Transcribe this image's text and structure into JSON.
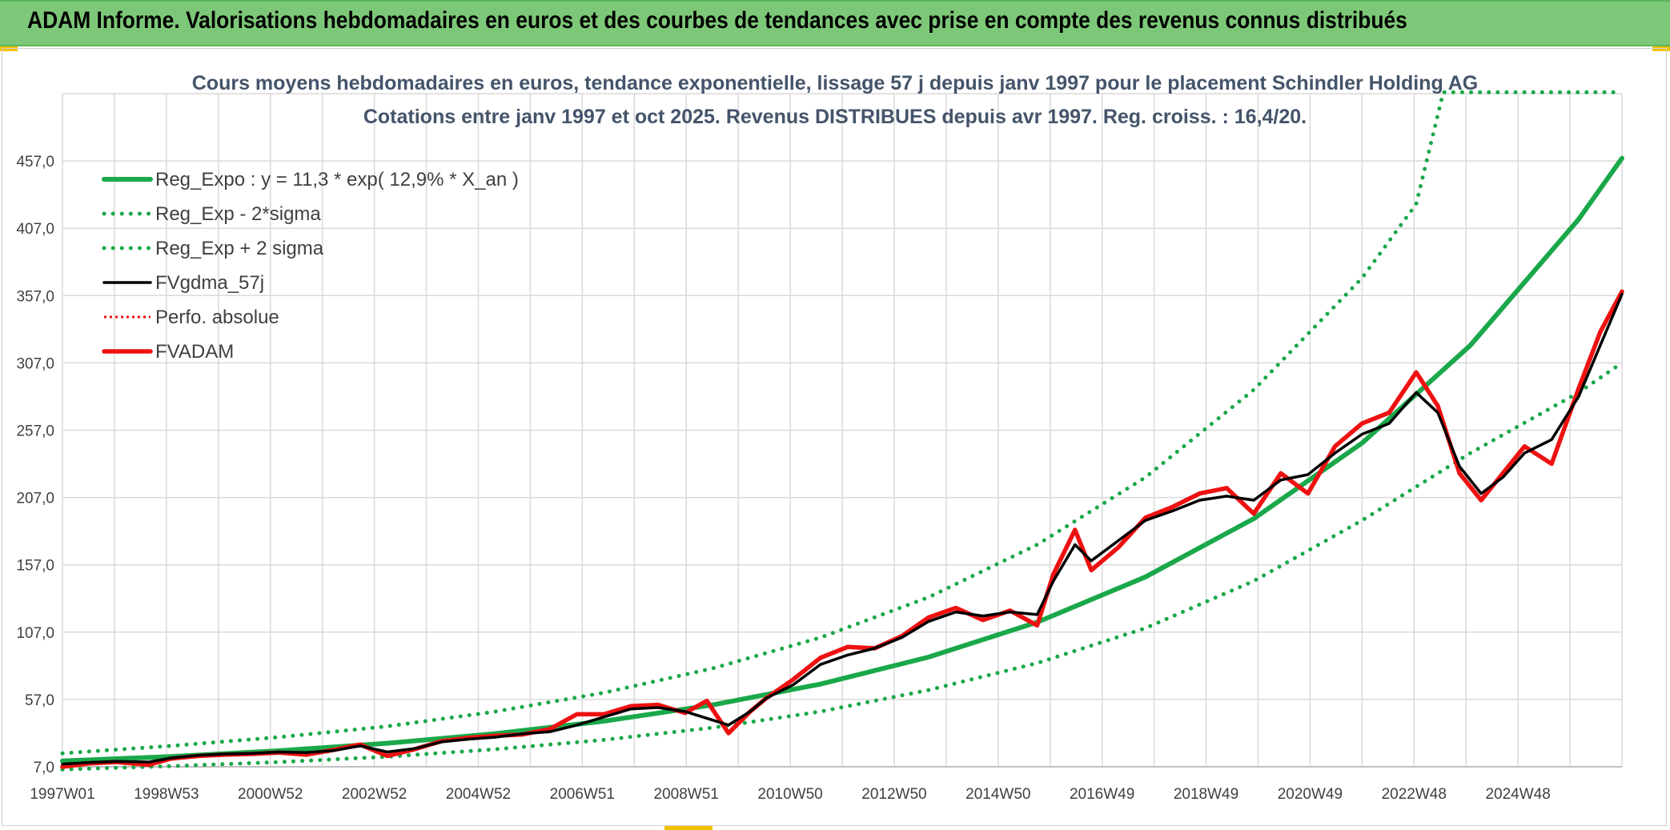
{
  "header": {
    "title": "ADAM Informe. Valorisations hebdomadaires en euros et des courbes de tendances avec prise en compte des revenus connus distribués"
  },
  "colors": {
    "banner": "#7dc878",
    "trend": "#1aa84a",
    "gdma": "#000000",
    "adam": "#ee1111",
    "title": "#44546a"
  },
  "chart_data": {
    "type": "line",
    "title": "Cours moyens hebdomadaires en euros, tendance exponentielle, lissage 57 j depuis janv 1997 pour le placement Schindler Holding AG",
    "subtitle": "Cotations entre janv 1997 et oct 2025. Revenus DISTRIBUES depuis avr 1997. Reg. croiss. : 16,4/20.",
    "x_ticks": [
      "1997W01",
      "1998W53",
      "2000W52",
      "2002W52",
      "2004W52",
      "2006W51",
      "2008W51",
      "2010W50",
      "2012W50",
      "2014W50",
      "2016W49",
      "2018W49",
      "2020W49",
      "2022W48",
      "2024W48"
    ],
    "y_ticks": [
      "7,0",
      "57,0",
      "107,0",
      "157,0",
      "207,0",
      "257,0",
      "307,0",
      "357,0",
      "407,0",
      "457,0"
    ],
    "ylim": [
      7,
      507
    ],
    "xlim": [
      1997.0,
      2025.8
    ],
    "grid": true,
    "legend_position": "top-left",
    "series": [
      {
        "name": "Reg_Expo : y = 11,3 * exp( 12,9% *  X_an )",
        "style": "solid-green",
        "values": [
          [
            1997.0,
            11.3
          ],
          [
            1999.0,
            14.6
          ],
          [
            2001.0,
            18.9
          ],
          [
            2003.0,
            24.5
          ],
          [
            2005.0,
            31.6
          ],
          [
            2007.0,
            40.9
          ],
          [
            2009.0,
            52.9
          ],
          [
            2011.0,
            68.4
          ],
          [
            2013.0,
            88.5
          ],
          [
            2015.0,
            114.4
          ],
          [
            2017.0,
            148.0
          ],
          [
            2019.0,
            191.3
          ],
          [
            2021.0,
            247.4
          ],
          [
            2023.0,
            320.0
          ],
          [
            2025.0,
            413.7
          ],
          [
            2025.8,
            459.0
          ]
        ]
      },
      {
        "name": "Reg_Exp - 2*sigma",
        "style": "dotted-green",
        "values": [
          [
            1997.0,
            5.0
          ],
          [
            1999.0,
            7.5
          ],
          [
            2001.0,
            10.5
          ],
          [
            2003.0,
            14.5
          ],
          [
            2005.0,
            20.0
          ],
          [
            2007.0,
            27.0
          ],
          [
            2009.0,
            36.0
          ],
          [
            2011.0,
            48.0
          ],
          [
            2013.0,
            64.0
          ],
          [
            2015.0,
            84.0
          ],
          [
            2017.0,
            110.0
          ],
          [
            2019.0,
            145.0
          ],
          [
            2021.0,
            190.0
          ],
          [
            2023.0,
            240.0
          ],
          [
            2025.0,
            285.0
          ],
          [
            2025.8,
            307.0
          ]
        ]
      },
      {
        "name": "Reg_Exp + 2 sigma",
        "style": "dotted-green",
        "values": [
          [
            1997.0,
            17.0
          ],
          [
            1999.0,
            22.5
          ],
          [
            2001.0,
            29.0
          ],
          [
            2003.0,
            37.0
          ],
          [
            2005.0,
            48.0
          ],
          [
            2007.0,
            62.0
          ],
          [
            2009.0,
            80.0
          ],
          [
            2011.0,
            103.0
          ],
          [
            2013.0,
            133.0
          ],
          [
            2015.0,
            172.0
          ],
          [
            2017.0,
            222.0
          ],
          [
            2019.0,
            287.0
          ],
          [
            2021.0,
            370.0
          ],
          [
            2022.0,
            425.0
          ],
          [
            2022.5,
            508.0
          ],
          [
            2025.8,
            508.0
          ]
        ]
      },
      {
        "name": "FVgdma_57j",
        "style": "solid-black",
        "values": [
          [
            1997.0,
            9.0
          ],
          [
            1997.5,
            10.2
          ],
          [
            1998.0,
            11.0
          ],
          [
            1998.6,
            10.5
          ],
          [
            1999.0,
            13.5
          ],
          [
            1999.5,
            15.5
          ],
          [
            2000.0,
            16.5
          ],
          [
            2000.5,
            17.0
          ],
          [
            2001.0,
            18.0
          ],
          [
            2001.5,
            17.5
          ],
          [
            2002.0,
            19.0
          ],
          [
            2002.5,
            22.5
          ],
          [
            2003.0,
            18.0
          ],
          [
            2003.5,
            20.5
          ],
          [
            2004.0,
            25.5
          ],
          [
            2004.5,
            27.5
          ],
          [
            2005.0,
            29.0
          ],
          [
            2005.5,
            31.5
          ],
          [
            2006.0,
            33.0
          ],
          [
            2006.5,
            38.0
          ],
          [
            2007.0,
            44.0
          ],
          [
            2007.5,
            50.0
          ],
          [
            2008.0,
            51.0
          ],
          [
            2008.5,
            48.0
          ],
          [
            2008.9,
            43.0
          ],
          [
            2009.3,
            38.0
          ],
          [
            2009.7,
            48.0
          ],
          [
            2010.0,
            58.0
          ],
          [
            2010.5,
            68.0
          ],
          [
            2011.0,
            83.0
          ],
          [
            2011.5,
            90.0
          ],
          [
            2012.0,
            95.0
          ],
          [
            2012.5,
            103.0
          ],
          [
            2013.0,
            115.0
          ],
          [
            2013.5,
            122.0
          ],
          [
            2014.0,
            119.0
          ],
          [
            2014.5,
            122.0
          ],
          [
            2015.0,
            120.0
          ],
          [
            2015.3,
            145.0
          ],
          [
            2015.7,
            172.0
          ],
          [
            2016.0,
            160.0
          ],
          [
            2016.5,
            175.0
          ],
          [
            2017.0,
            190.0
          ],
          [
            2017.5,
            197.0
          ],
          [
            2018.0,
            205.0
          ],
          [
            2018.5,
            208.0
          ],
          [
            2019.0,
            205.0
          ],
          [
            2019.5,
            220.0
          ],
          [
            2020.0,
            224.0
          ],
          [
            2020.5,
            240.0
          ],
          [
            2021.0,
            254.0
          ],
          [
            2021.5,
            262.0
          ],
          [
            2022.0,
            285.0
          ],
          [
            2022.4,
            270.0
          ],
          [
            2022.8,
            230.0
          ],
          [
            2023.2,
            210.0
          ],
          [
            2023.6,
            222.0
          ],
          [
            2024.0,
            240.0
          ],
          [
            2024.5,
            250.0
          ],
          [
            2025.0,
            282.0
          ],
          [
            2025.4,
            320.0
          ],
          [
            2025.8,
            358.0
          ]
        ]
      },
      {
        "name": "Perfo. absolue",
        "style": "dotted-red",
        "values": []
      },
      {
        "name": "FVADAM",
        "style": "solid-red",
        "values": [
          [
            1997.0,
            7.0
          ],
          [
            1997.5,
            9.5
          ],
          [
            1998.0,
            10.5
          ],
          [
            1998.6,
            8.5
          ],
          [
            1999.0,
            13.0
          ],
          [
            1999.5,
            15.0
          ],
          [
            2000.0,
            16.0
          ],
          [
            2000.5,
            16.5
          ],
          [
            2001.0,
            17.5
          ],
          [
            2001.5,
            16.0
          ],
          [
            2002.0,
            19.5
          ],
          [
            2002.5,
            23.5
          ],
          [
            2003.0,
            15.0
          ],
          [
            2003.5,
            20.0
          ],
          [
            2004.0,
            26.0
          ],
          [
            2004.5,
            28.5
          ],
          [
            2005.0,
            30.0
          ],
          [
            2005.5,
            31.0
          ],
          [
            2006.0,
            35.0
          ],
          [
            2006.5,
            46.0
          ],
          [
            2007.0,
            46.0
          ],
          [
            2007.5,
            52.0
          ],
          [
            2008.0,
            53.0
          ],
          [
            2008.5,
            47.0
          ],
          [
            2008.9,
            56.0
          ],
          [
            2009.3,
            32.0
          ],
          [
            2009.7,
            48.0
          ],
          [
            2010.0,
            58.0
          ],
          [
            2010.5,
            72.0
          ],
          [
            2011.0,
            88.0
          ],
          [
            2011.5,
            96.0
          ],
          [
            2012.0,
            95.0
          ],
          [
            2012.5,
            104.0
          ],
          [
            2013.0,
            118.0
          ],
          [
            2013.5,
            125.0
          ],
          [
            2014.0,
            116.0
          ],
          [
            2014.5,
            123.0
          ],
          [
            2015.0,
            112.0
          ],
          [
            2015.3,
            150.0
          ],
          [
            2015.7,
            183.0
          ],
          [
            2016.0,
            153.0
          ],
          [
            2016.5,
            170.0
          ],
          [
            2017.0,
            192.0
          ],
          [
            2017.5,
            200.0
          ],
          [
            2018.0,
            210.0
          ],
          [
            2018.5,
            214.0
          ],
          [
            2019.0,
            195.0
          ],
          [
            2019.5,
            225.0
          ],
          [
            2020.0,
            210.0
          ],
          [
            2020.5,
            245.0
          ],
          [
            2021.0,
            262.0
          ],
          [
            2021.5,
            270.0
          ],
          [
            2022.0,
            300.0
          ],
          [
            2022.4,
            275.0
          ],
          [
            2022.8,
            225.0
          ],
          [
            2023.2,
            205.0
          ],
          [
            2023.6,
            225.0
          ],
          [
            2024.0,
            245.0
          ],
          [
            2024.5,
            232.0
          ],
          [
            2025.0,
            288.0
          ],
          [
            2025.4,
            330.0
          ],
          [
            2025.8,
            360.0
          ]
        ]
      }
    ]
  }
}
